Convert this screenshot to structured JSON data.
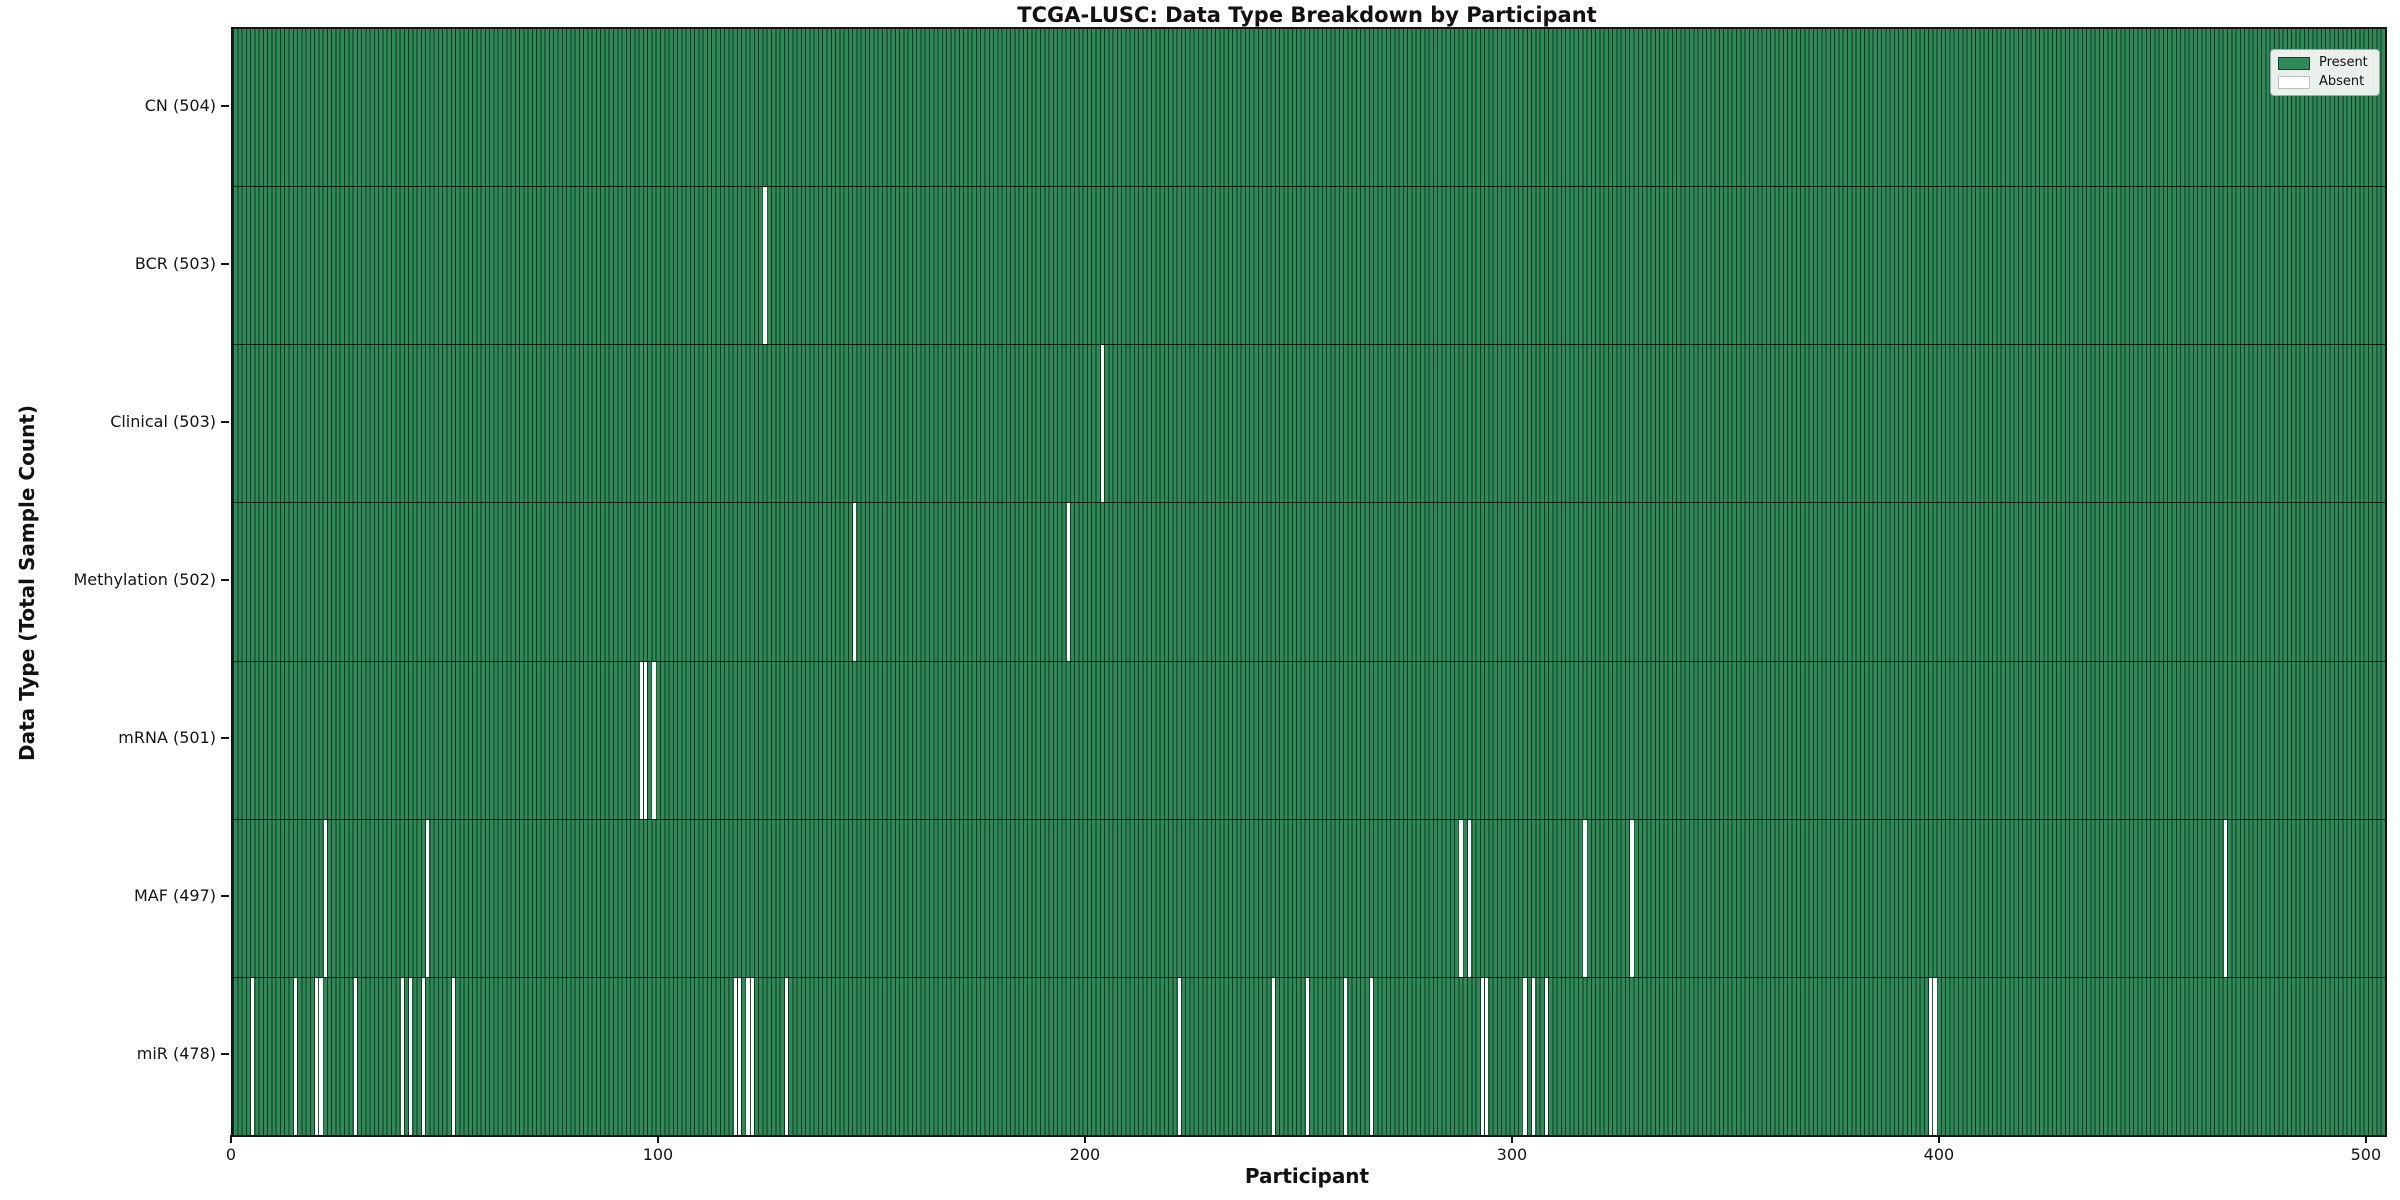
{
  "title": "TCGA-LUSC: Data Type Breakdown by Participant",
  "xlabel": "Participant",
  "ylabel": "Data Type (Total Sample Count)",
  "legend": {
    "present_label": "Present",
    "absent_label": "Absent"
  },
  "colors": {
    "present": "#2e8b57",
    "present_edge": "#10361f",
    "absent": "#ffffff",
    "axis": "#141414"
  },
  "chart_data": {
    "type": "heatmap",
    "title": "TCGA-LUSC: Data Type Breakdown by Participant",
    "xlabel": "Participant",
    "ylabel": "Data Type (Total Sample Count)",
    "legend_entries": [
      "Present",
      "Absent"
    ],
    "legend_position": "upper right",
    "n_participants": 504,
    "x_ticks": [
      0,
      100,
      200,
      300,
      400,
      500
    ],
    "xlim": [
      0,
      504
    ],
    "rows": [
      {
        "label": "CN (504)",
        "data_type": "CN",
        "total_samples": 504,
        "absent_participants": []
      },
      {
        "label": "BCR (503)",
        "data_type": "BCR",
        "total_samples": 503,
        "absent_participants": [
          124
        ]
      },
      {
        "label": "Clinical (503)",
        "data_type": "Clinical",
        "total_samples": 503,
        "absent_participants": [
          203
        ]
      },
      {
        "label": "Methylation (502)",
        "data_type": "Methylation",
        "total_samples": 502,
        "absent_participants": [
          145,
          195
        ]
      },
      {
        "label": "mRNA (501)",
        "data_type": "mRNA",
        "total_samples": 501,
        "absent_participants": [
          95,
          96,
          98
        ]
      },
      {
        "label": "MAF (497)",
        "data_type": "MAF",
        "total_samples": 497,
        "absent_participants": [
          21,
          45,
          287,
          289,
          316,
          327,
          466
        ]
      },
      {
        "label": "miR (478)",
        "data_type": "miR",
        "total_samples": 478,
        "absent_participants": [
          4,
          14,
          19,
          20,
          28,
          39,
          41,
          44,
          51,
          117,
          118,
          120,
          121,
          129,
          221,
          243,
          251,
          260,
          266,
          292,
          293,
          302,
          304,
          307,
          397,
          398
        ]
      }
    ]
  }
}
